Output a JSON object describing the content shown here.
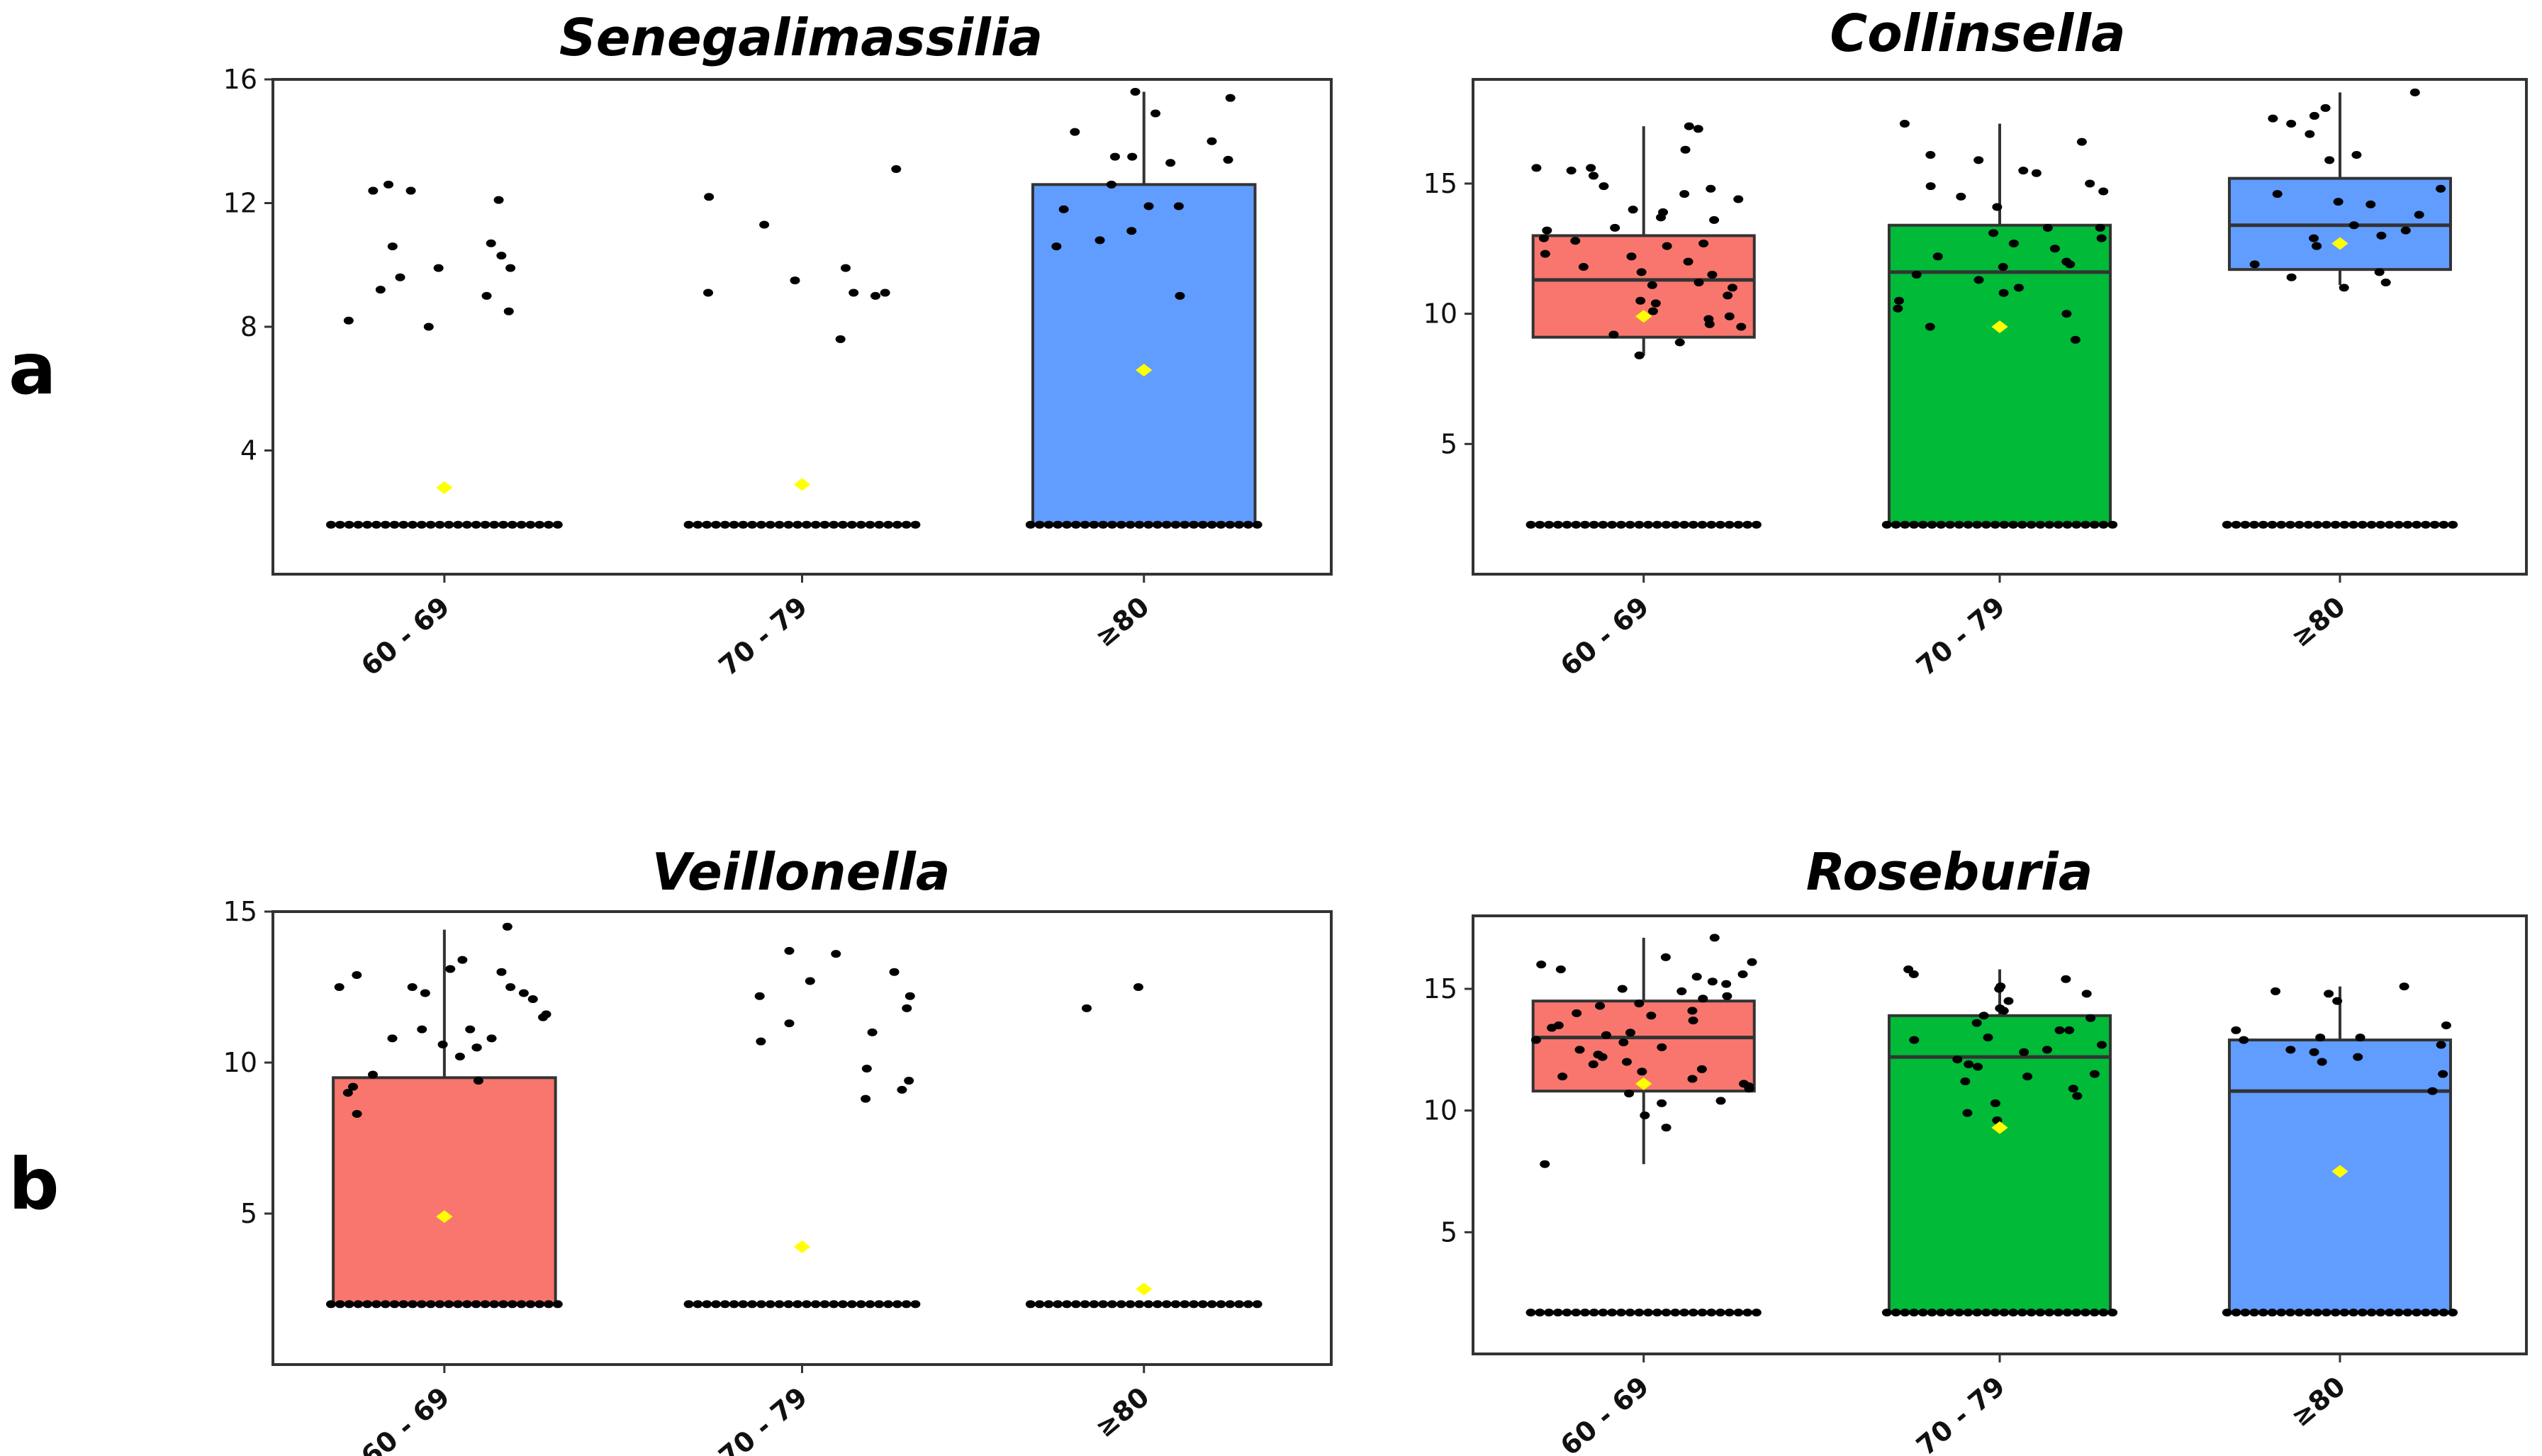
{
  "figure": {
    "panel_labels": [
      "a",
      "b"
    ],
    "colors": {
      "group1": "#F8766D",
      "group2": "#00BA38",
      "group3": "#619CFF",
      "mean_marker": "#FFFF00",
      "point": "#000000"
    }
  },
  "chart_data": [
    {
      "type": "boxplot",
      "title": "Senegalimassilia",
      "xlabel": "",
      "ylabel": "",
      "categories": [
        "60 - 69",
        "70 - 79",
        "≥80"
      ],
      "ylim": [
        0,
        16
      ],
      "yticks": [
        4,
        8,
        12,
        16
      ],
      "boxes": [
        {
          "category": "60 - 69",
          "lower": 1.6,
          "q1": 1.6,
          "median": 1.6,
          "q3": 1.6,
          "upper": 1.6,
          "mean": 2.8
        },
        {
          "category": "70 - 79",
          "lower": 1.6,
          "q1": 1.6,
          "median": 1.6,
          "q3": 1.6,
          "upper": 1.6,
          "mean": 2.9
        },
        {
          "category": "≥80",
          "lower": 1.6,
          "q1": 1.6,
          "median": 1.6,
          "q3": 12.6,
          "upper": 15.6,
          "mean": 6.6
        }
      ],
      "points": [
        {
          "category": "60 - 69",
          "values": [
            10.7,
            9.2,
            12.1,
            12.4,
            9.9,
            9.6,
            12.6,
            12.4,
            10.6,
            9.9,
            9.0,
            8.5,
            8.2,
            8.0,
            10.3
          ]
        },
        {
          "category": "70 - 79",
          "values": [
            7.6,
            9.9,
            9.1,
            9.0,
            13.1,
            11.3,
            12.2,
            9.5,
            9.1,
            9.1
          ]
        },
        {
          "category": "≥80",
          "values": [
            15.6,
            14.9,
            14.3,
            14.0,
            15.4,
            13.5,
            11.1,
            10.6,
            9.0,
            12.6,
            10.8,
            13.3,
            11.9,
            11.9,
            13.5,
            11.8,
            13.4
          ]
        }
      ],
      "baseline_value": 1.6
    },
    {
      "type": "boxplot",
      "title": "Collinsella",
      "xlabel": "",
      "ylabel": "",
      "categories": [
        "60 - 69",
        "70 - 79",
        "≥80"
      ],
      "ylim": [
        0,
        19
      ],
      "yticks": [
        5,
        10,
        15
      ],
      "boxes": [
        {
          "category": "60 - 69",
          "lower": 8.4,
          "q1": 9.1,
          "median": 11.3,
          "q3": 13.0,
          "upper": 17.2,
          "mean": 9.9
        },
        {
          "category": "70 - 79",
          "lower": 1.9,
          "q1": 1.9,
          "median": 11.6,
          "q3": 13.4,
          "upper": 17.3,
          "mean": 9.5
        },
        {
          "category": "≥80",
          "lower": 11.1,
          "q1": 11.7,
          "median": 13.4,
          "q3": 15.2,
          "upper": 18.5,
          "mean": 12.7
        }
      ],
      "points": [
        {
          "category": "60 - 69",
          "values": [
            17.1,
            15.6,
            15.5,
            14.4,
            14.0,
            13.6,
            13.2,
            12.9,
            12.6,
            12.3,
            12.0,
            11.8,
            11.5,
            11.2,
            11.0,
            10.7,
            10.4,
            10.1,
            9.8,
            9.5,
            9.2,
            8.9,
            8.4,
            16.3,
            15.3,
            14.9,
            14.6,
            13.9,
            13.3,
            12.7,
            12.2,
            11.6,
            11.1,
            10.5,
            9.9,
            9.6,
            17.2,
            15.6,
            14.8,
            13.7,
            12.8
          ]
        },
        {
          "category": "70 - 79",
          "values": [
            16.1,
            15.9,
            15.5,
            15.0,
            14.7,
            14.1,
            13.3,
            12.5,
            12.0,
            11.5,
            11.0,
            10.5,
            10.0,
            9.5,
            9.0,
            17.3,
            16.6,
            15.4,
            14.9,
            14.5,
            13.1,
            12.7,
            12.2,
            11.8,
            11.3,
            10.8,
            10.2,
            13.3,
            12.9,
            11.9
          ]
        },
        {
          "category": "≥80",
          "values": [
            17.9,
            17.3,
            18.5,
            16.9,
            17.6,
            17.5,
            16.1,
            15.9,
            14.8,
            14.6,
            14.2,
            13.8,
            13.4,
            13.2,
            12.9,
            12.6,
            11.9,
            11.6,
            11.4,
            11.2,
            11.0,
            13.0,
            12.6,
            14.3
          ]
        }
      ],
      "baseline_value": 1.9
    },
    {
      "type": "boxplot",
      "title": "Veillonella",
      "xlabel": "",
      "ylabel": "",
      "categories": [
        "60 - 69",
        "70 - 79",
        "≥80"
      ],
      "ylim": [
        0,
        15
      ],
      "yticks": [
        5,
        10,
        15
      ],
      "boxes": [
        {
          "category": "60 - 69",
          "lower": 2.0,
          "q1": 2.0,
          "median": 2.0,
          "q3": 9.5,
          "upper": 14.4,
          "mean": 4.9
        },
        {
          "category": "70 - 79",
          "lower": 2.0,
          "q1": 2.0,
          "median": 2.0,
          "q3": 2.0,
          "upper": 2.0,
          "mean": 3.9
        },
        {
          "category": "≥80",
          "lower": 2.0,
          "q1": 2.0,
          "median": 2.0,
          "q3": 2.0,
          "upper": 2.0,
          "mean": 2.5
        }
      ],
      "points": [
        {
          "category": "60 - 69",
          "values": [
            14.5,
            12.5,
            13.4,
            13.1,
            12.9,
            12.5,
            12.3,
            12.1,
            11.5,
            11.1,
            10.8,
            10.5,
            10.2,
            9.2,
            9.0,
            8.3,
            12.3,
            12.5,
            13.0,
            11.6,
            11.1,
            10.8,
            10.6,
            10.5,
            9.4,
            9.6
          ]
        },
        {
          "category": "70 - 79",
          "values": [
            11.0,
            12.2,
            13.0,
            13.6,
            13.7,
            12.7,
            11.8,
            12.2,
            11.3,
            10.7,
            9.8,
            9.4,
            9.1,
            8.8
          ]
        },
        {
          "category": "≥80",
          "values": [
            11.8,
            12.5
          ]
        }
      ],
      "baseline_value": 2.0
    },
    {
      "type": "boxplot",
      "title": "Roseburia",
      "xlabel": "",
      "ylabel": "",
      "categories": [
        "60 - 69",
        "70 - 79",
        "≥80"
      ],
      "ylim": [
        0,
        18
      ],
      "yticks": [
        5,
        10,
        15
      ],
      "boxes": [
        {
          "category": "60 - 69",
          "lower": 7.8,
          "q1": 10.8,
          "median": 13.0,
          "q3": 14.5,
          "upper": 17.1,
          "mean": 11.1
        },
        {
          "category": "70 - 79",
          "lower": 1.7,
          "q1": 1.7,
          "median": 12.2,
          "q3": 13.9,
          "upper": 15.8,
          "mean": 9.3
        },
        {
          "category": "≥80",
          "lower": 1.7,
          "q1": 1.7,
          "median": 10.8,
          "q3": 12.9,
          "upper": 15.1,
          "mean": 7.5
        }
      ],
      "points": [
        {
          "category": "60 - 69",
          "values": [
            17.1,
            16.3,
            16.1,
            15.8,
            15.5,
            15.2,
            14.9,
            14.6,
            14.3,
            14.0,
            13.7,
            13.4,
            13.1,
            12.8,
            12.5,
            12.2,
            11.9,
            11.6,
            11.3,
            11.0,
            10.7,
            10.4,
            9.8,
            9.3,
            7.8,
            16.0,
            15.6,
            15.0,
            14.4,
            13.9,
            13.2,
            12.6,
            12.0,
            11.4,
            10.9,
            15.3,
            14.7,
            14.1,
            13.5,
            12.9,
            12.3,
            11.7,
            11.1,
            10.3
          ]
        },
        {
          "category": "70 - 79",
          "values": [
            15.8,
            15.4,
            15.1,
            14.8,
            14.5,
            14.2,
            13.9,
            13.6,
            13.3,
            13.0,
            12.7,
            12.4,
            12.1,
            11.8,
            11.5,
            11.2,
            10.9,
            10.6,
            10.3,
            9.9,
            9.6,
            15.6,
            15.0,
            14.1,
            13.3,
            12.9,
            12.5,
            11.9,
            11.4,
            13.8
          ]
        },
        {
          "category": "≥80",
          "values": [
            15.1,
            14.9,
            14.8,
            14.5,
            13.5,
            13.0,
            12.9,
            12.7,
            12.5,
            12.2,
            12.0,
            11.5,
            10.8,
            13.3,
            12.4,
            13.0
          ]
        }
      ],
      "baseline_value": 1.7
    }
  ]
}
